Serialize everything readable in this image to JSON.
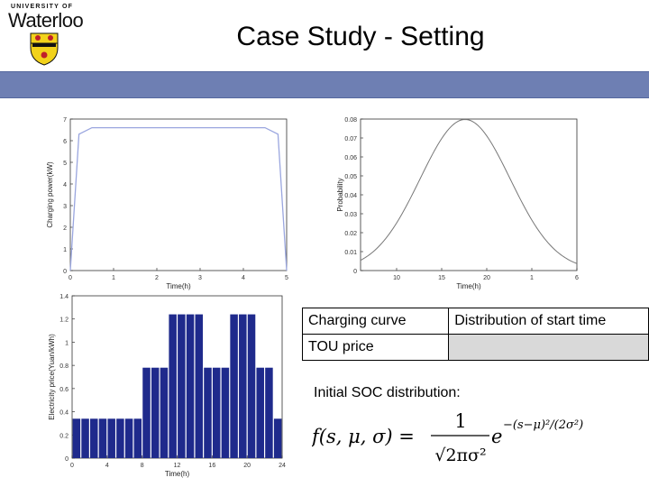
{
  "header": {
    "logo_top": "UNIVERSITY OF",
    "logo_name": "Waterloo",
    "title": "Case Study - Setting"
  },
  "colors": {
    "accent_bar": "#6e7fb3",
    "bar_fill": "#1f2a8c",
    "curve": "#9aa6df",
    "shaded_cell": "#d9d9d9"
  },
  "chart_data": [
    {
      "type": "line",
      "xlabel": "Time(h)",
      "ylabel": "Charging power(kW)",
      "xlim": [
        0,
        5
      ],
      "ylim": [
        0,
        7
      ],
      "xticks": [
        "0",
        "1",
        "2",
        "3",
        "4",
        "5"
      ],
      "yticks": [
        "0",
        "1",
        "2",
        "3",
        "4",
        "5",
        "6",
        "7"
      ],
      "x": [
        0,
        0.2,
        0.5,
        4.5,
        4.8,
        5
      ],
      "y": [
        0,
        6.3,
        6.6,
        6.6,
        6.3,
        0
      ]
    },
    {
      "type": "line",
      "xlabel": "Time(h)",
      "ylabel": "Probability",
      "xlim": [
        6,
        30
      ],
      "ylim": [
        0,
        0.08
      ],
      "xticks": [
        "10",
        "15",
        "20",
        "1",
        "6"
      ],
      "xtick_positions": [
        10,
        15,
        20,
        25,
        30
      ],
      "yticks": [
        "0",
        "0.01",
        "0.02",
        "0.03",
        "0.04",
        "0.05",
        "0.06",
        "0.07",
        "0.08"
      ],
      "mu": 17.6,
      "sigma": 5.0
    },
    {
      "type": "bar",
      "xlabel": "Time(h)",
      "ylabel": "Electricity price(Yuan/kWh)",
      "xlim": [
        0,
        24
      ],
      "ylim": [
        0,
        1.4
      ],
      "xticks": [
        "0",
        "4",
        "8",
        "12",
        "16",
        "20",
        "24"
      ],
      "yticks": [
        "0",
        "0.2",
        "0.4",
        "0.6",
        "0.8",
        "1",
        "1.2",
        "1.4"
      ],
      "values": [
        0.34,
        0.34,
        0.34,
        0.34,
        0.34,
        0.34,
        0.34,
        0.34,
        0.78,
        0.78,
        0.78,
        1.24,
        1.24,
        1.24,
        1.24,
        0.78,
        0.78,
        0.78,
        1.24,
        1.24,
        1.24,
        0.78,
        0.78,
        0.34
      ]
    }
  ],
  "table": {
    "row1": {
      "col1": "Charging curve",
      "col2": "Distribution of start time"
    },
    "row2": {
      "col1": "TOU price",
      "col2": ""
    }
  },
  "soc_label": "Initial SOC distribution:",
  "formula": {
    "lhs": "f(s, μ, σ) =",
    "num": "1",
    "den": "√2πσ²",
    "e": "e",
    "exp": "−(s−μ)²/(2σ²)"
  }
}
